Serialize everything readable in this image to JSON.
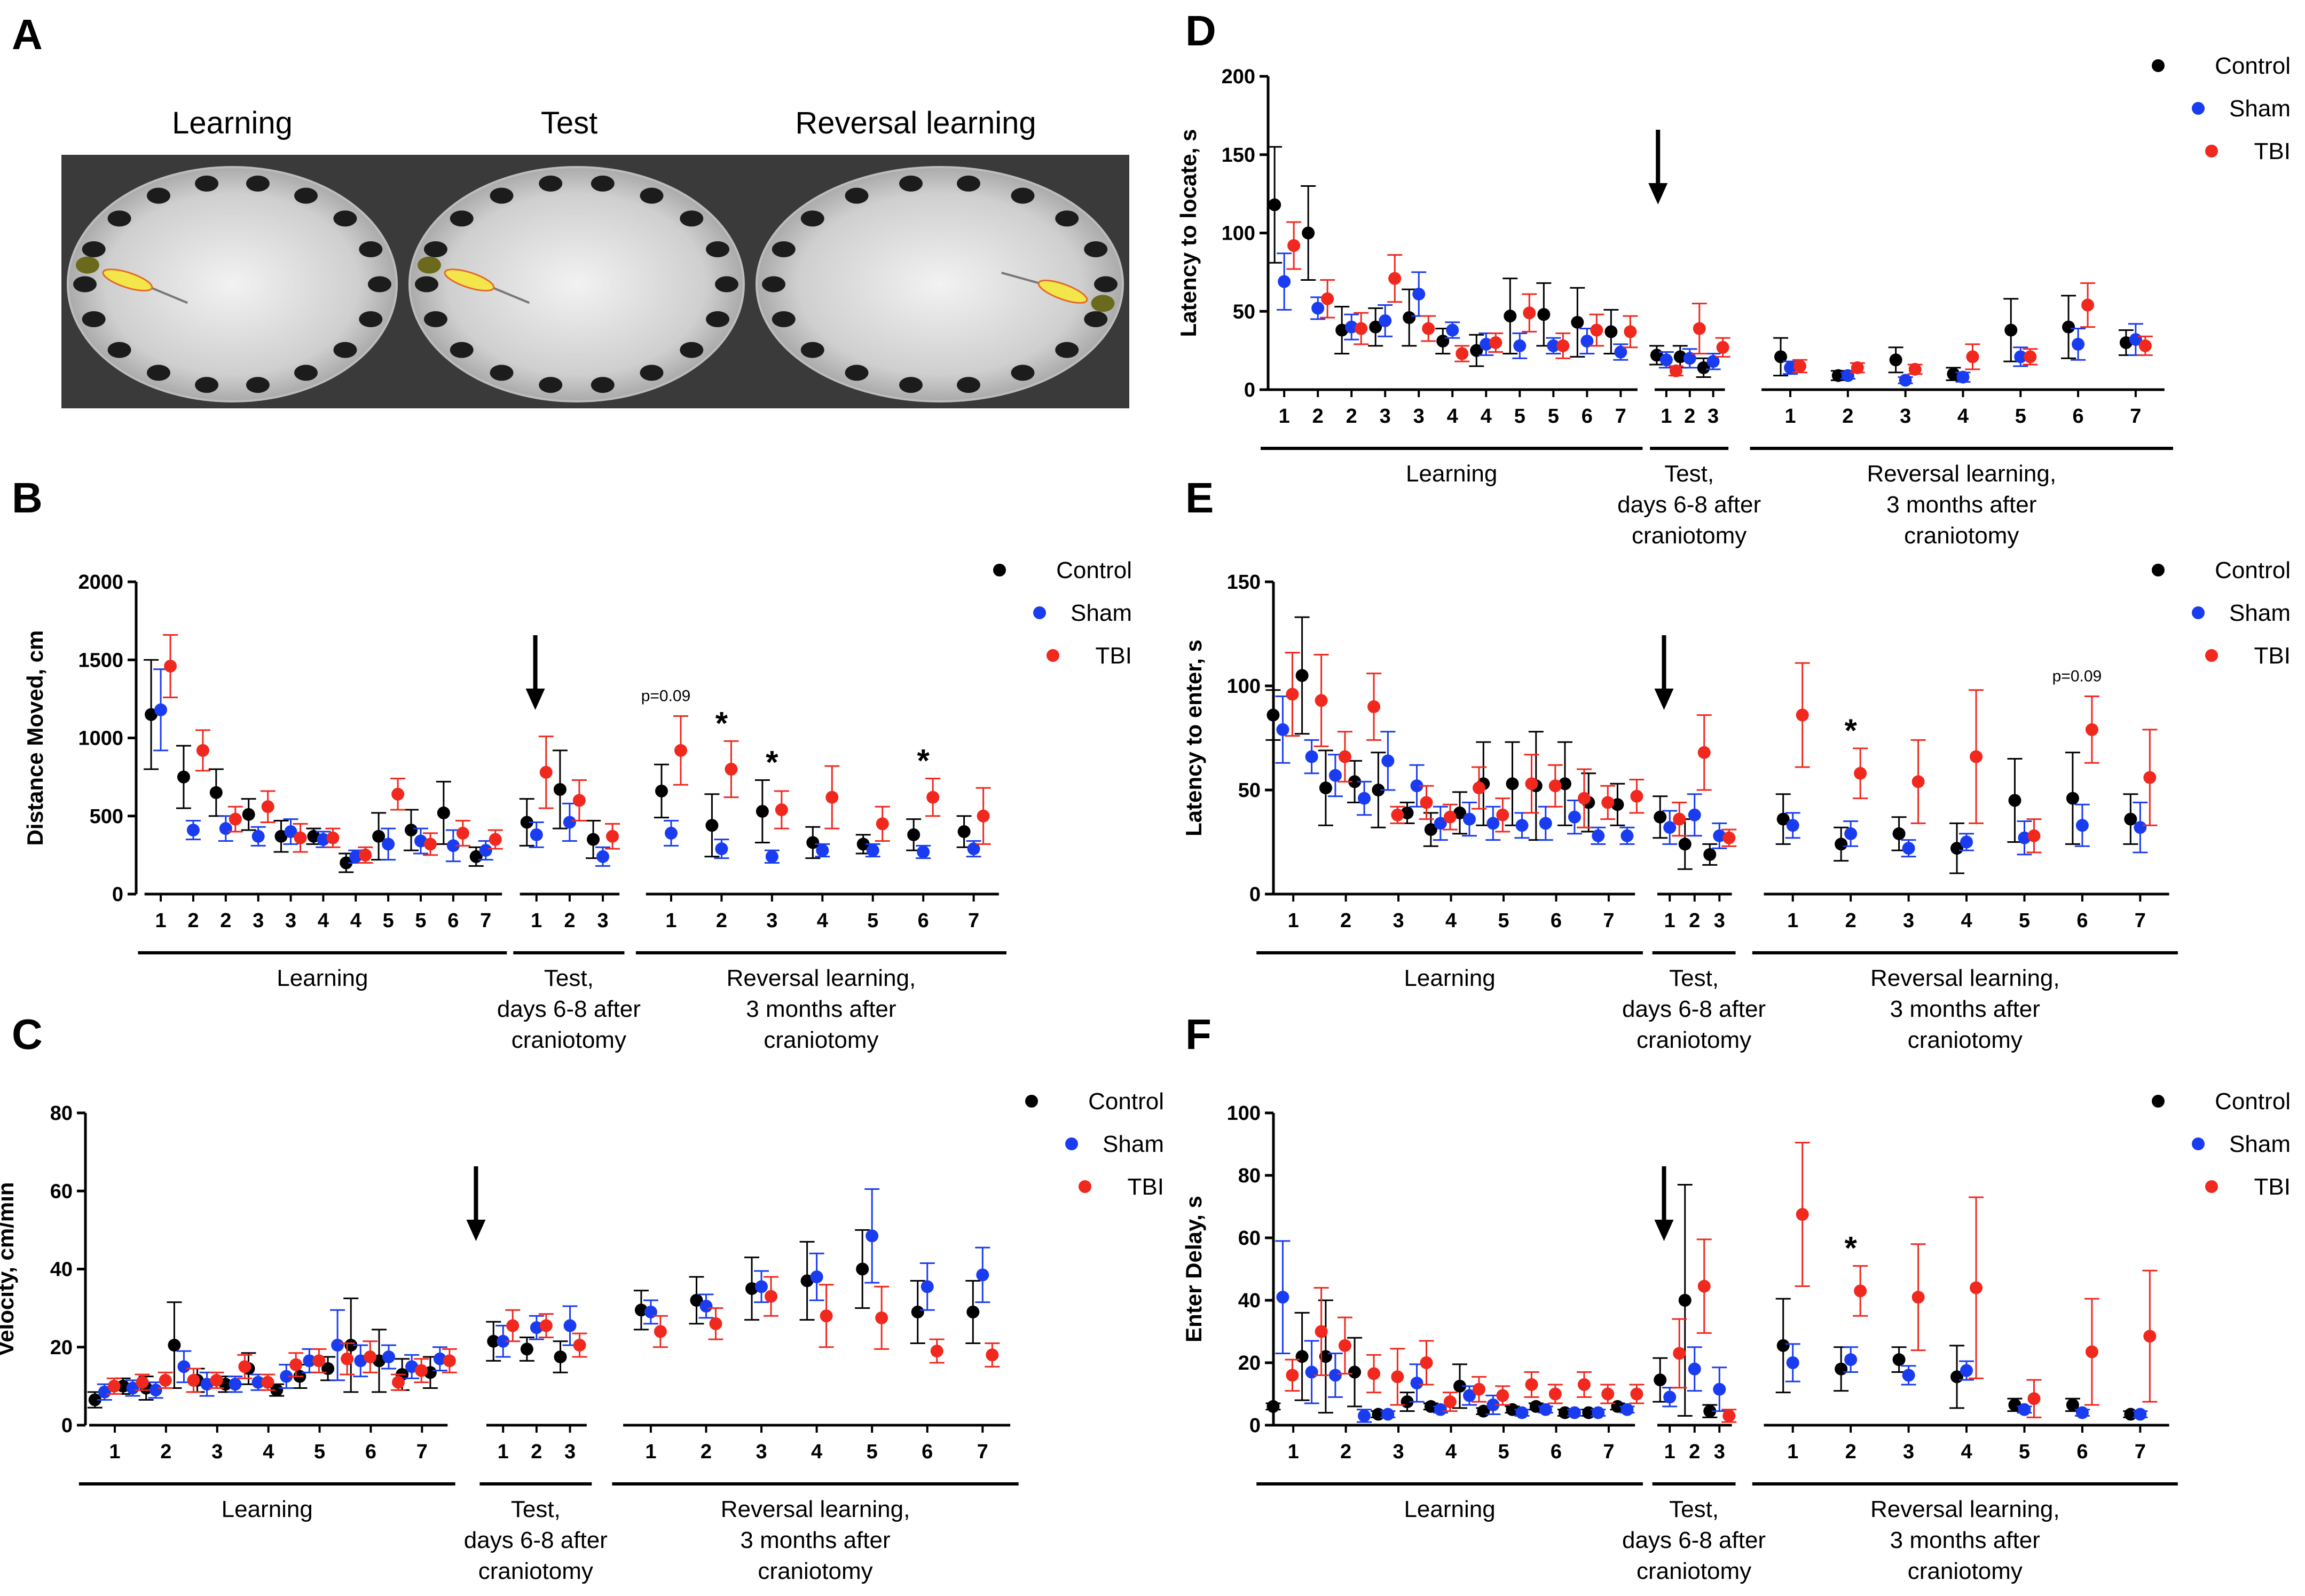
{
  "colors": {
    "Control": "#000000",
    "Sham": "#1a3cf0",
    "TBI": "#f0281e"
  },
  "photo_panel": {
    "letter": "A",
    "labels": [
      "Learning",
      "Test",
      "Reversal learning"
    ]
  },
  "chart_data": [
    {
      "panel": "B",
      "type": "scatter",
      "ylabel": "Distance Moved, cm",
      "ylim": [
        0,
        2000
      ],
      "yticks": [
        0,
        500,
        1000,
        1500,
        2000
      ],
      "legend": [
        "Control",
        "Sham",
        "TBI"
      ],
      "legend_position": "top-right",
      "groups": [
        {
          "label": "Learning",
          "ticks": [
            "1",
            "2",
            "2",
            "3",
            "3",
            "4",
            "4",
            "5",
            "5",
            "6",
            "7"
          ]
        },
        {
          "label": "Test,\ndays 6-8 after\ncraniotomy",
          "ticks": [
            "1",
            "2",
            "3"
          ]
        },
        {
          "label": "Reversal learning,\n3 months after\ncraniotomy",
          "ticks": [
            "1",
            "2",
            "3",
            "4",
            "5",
            "6",
            "7"
          ]
        }
      ],
      "series": [
        {
          "name": "Control",
          "values": [
            1150,
            750,
            650,
            510,
            370,
            370,
            200,
            370,
            410,
            520,
            240,
            460,
            670,
            350,
            660,
            440,
            530,
            330,
            320,
            380,
            400
          ],
          "errors": [
            350,
            200,
            150,
            100,
            100,
            50,
            60,
            150,
            130,
            200,
            60,
            150,
            250,
            120,
            170,
            200,
            200,
            100,
            60,
            100,
            100
          ]
        },
        {
          "name": "Sham",
          "values": [
            1180,
            410,
            420,
            370,
            400,
            350,
            240,
            320,
            340,
            310,
            280,
            380,
            460,
            240,
            390,
            290,
            240,
            280,
            280,
            270,
            290
          ],
          "errors": [
            260,
            60,
            80,
            60,
            80,
            50,
            40,
            100,
            80,
            100,
            60,
            80,
            120,
            60,
            80,
            60,
            40,
            40,
            40,
            40,
            50
          ]
        },
        {
          "name": "TBI",
          "values": [
            1460,
            920,
            480,
            560,
            360,
            360,
            250,
            640,
            320,
            390,
            350,
            780,
            600,
            370,
            920,
            800,
            540,
            620,
            450,
            620,
            500
          ],
          "errors": [
            200,
            130,
            80,
            100,
            90,
            60,
            50,
            100,
            70,
            80,
            60,
            230,
            130,
            80,
            220,
            180,
            120,
            200,
            110,
            120,
            180
          ]
        }
      ],
      "annotations": [
        {
          "text": "p=0.09",
          "group": 2,
          "index": 0
        },
        {
          "text": "*",
          "group": 2,
          "index": 1
        },
        {
          "text": "*",
          "group": 2,
          "index": 2
        },
        {
          "text": "*",
          "group": 2,
          "index": 5
        }
      ]
    },
    {
      "panel": "C",
      "type": "scatter",
      "ylabel": "Velocity, cm/min",
      "ylim": [
        0,
        80
      ],
      "yticks": [
        0,
        20,
        40,
        60,
        80
      ],
      "legend": [
        "Control",
        "Sham",
        "TBI"
      ],
      "legend_position": "top-right",
      "groups": [
        {
          "label": "Learning",
          "ticks": [
            "1",
            "2",
            "3",
            "4",
            "5",
            "6",
            "7"
          ],
          "pairs": true
        },
        {
          "label": "Test,\ndays 6-8 after\ncraniotomy",
          "ticks": [
            "1",
            "2",
            "3"
          ]
        },
        {
          "label": "Reversal learning,\n3 months after\ncraniotomy",
          "ticks": [
            "1",
            "2",
            "3",
            "4",
            "5",
            "6",
            "7"
          ]
        }
      ],
      "series": [
        {
          "name": "Control",
          "values": [
            6.5,
            10,
            9.5,
            20.5,
            11.5,
            10.5,
            14.5,
            9,
            12.5,
            14.5,
            20.5,
            16.5,
            13,
            13.5,
            21.5,
            19.5,
            17.5,
            29.5,
            32,
            35,
            37,
            40,
            29,
            29
          ],
          "errors": [
            2,
            2,
            3,
            11,
            3,
            2,
            4,
            1.5,
            3,
            3,
            12,
            8,
            4,
            4,
            5,
            3,
            4,
            5,
            6,
            8,
            10,
            10,
            8,
            8
          ]
        },
        {
          "name": "Sham",
          "values": [
            8.5,
            9.5,
            9,
            15,
            10.5,
            10.5,
            11,
            12.5,
            16.5,
            20.5,
            16.5,
            17.5,
            15,
            17,
            21.5,
            25,
            25.5,
            29,
            30.5,
            35.5,
            38,
            48.5,
            35.5,
            38.5
          ],
          "errors": [
            2,
            2,
            2,
            4,
            3,
            2,
            2,
            3,
            3,
            9,
            4,
            3,
            3,
            3,
            4,
            3,
            5,
            3,
            3,
            4,
            6,
            12,
            6,
            7
          ]
        },
        {
          "name": "TBI",
          "values": [
            10,
            11,
            11.5,
            11.5,
            11.5,
            15,
            11,
            15.5,
            16.5,
            17,
            17.5,
            11,
            14,
            16.5,
            25.5,
            25.5,
            20.5,
            24,
            26,
            33,
            28,
            27.5,
            19,
            18
          ],
          "errors": [
            2,
            2,
            2,
            3,
            2,
            3,
            2,
            3,
            3,
            4,
            4,
            2,
            3,
            3,
            4,
            3,
            3,
            4,
            4,
            5,
            8,
            8,
            3,
            3
          ]
        }
      ]
    },
    {
      "panel": "D",
      "type": "scatter",
      "ylabel": "Latency to locate, s",
      "ylim": [
        0,
        200
      ],
      "yticks": [
        0,
        50,
        100,
        150,
        200
      ],
      "legend": [
        "Control",
        "Sham",
        "TBI"
      ],
      "legend_position": "top-right",
      "groups": [
        {
          "label": "Learning",
          "ticks": [
            "1",
            "2",
            "2",
            "3",
            "3",
            "4",
            "4",
            "5",
            "5",
            "6",
            "7"
          ]
        },
        {
          "label": "Test,\ndays 6-8 after\ncraniotomy",
          "ticks": [
            "1",
            "2",
            "3"
          ]
        },
        {
          "label": "Reversal learning,\n3 months after\ncraniotomy",
          "ticks": [
            "1",
            "2",
            "3",
            "4",
            "5",
            "6",
            "7"
          ]
        }
      ],
      "series": [
        {
          "name": "Control",
          "values": [
            118,
            100,
            38,
            40,
            46,
            31,
            25,
            47,
            48,
            43,
            37,
            22,
            21,
            14,
            21,
            9,
            19,
            10,
            38,
            40,
            30
          ],
          "errors": [
            37,
            30,
            15,
            12,
            18,
            8,
            10,
            24,
            20,
            22,
            14,
            6,
            7,
            6,
            12,
            3,
            8,
            4,
            20,
            20,
            8
          ]
        },
        {
          "name": "Sham",
          "values": [
            69,
            52,
            40,
            44,
            61,
            38,
            29,
            28,
            28,
            31,
            24,
            19,
            20,
            18,
            14,
            9,
            6,
            8,
            21,
            29,
            32
          ],
          "errors": [
            18,
            7,
            8,
            10,
            14,
            5,
            7,
            8,
            5,
            8,
            5,
            5,
            6,
            5,
            4,
            2,
            2,
            3,
            6,
            10,
            10
          ]
        },
        {
          "name": "TBI",
          "values": [
            92,
            58,
            39,
            71,
            39,
            23,
            30,
            49,
            28,
            38,
            37,
            12,
            39,
            27,
            15,
            14,
            13,
            21,
            21,
            54,
            28
          ],
          "errors": [
            15,
            12,
            10,
            15,
            8,
            5,
            6,
            12,
            8,
            10,
            10,
            3,
            16,
            6,
            4,
            3,
            3,
            8,
            5,
            14,
            6
          ]
        }
      ]
    },
    {
      "panel": "E",
      "type": "scatter",
      "ylabel": "Latency to enter, s",
      "ylim": [
        0,
        150
      ],
      "yticks": [
        0,
        50,
        100,
        150
      ],
      "legend": [
        "Control",
        "Sham",
        "TBI"
      ],
      "legend_position": "top-right",
      "groups": [
        {
          "label": "Learning",
          "ticks": [
            "1",
            "2",
            "3",
            "4",
            "5",
            "6",
            "7"
          ],
          "pairs": true
        },
        {
          "label": "Test,\ndays 6-8 after\ncraniotomy",
          "ticks": [
            "1",
            "2",
            "3"
          ]
        },
        {
          "label": "Reversal learning,\n3 months after\ncraniotomy",
          "ticks": [
            "1",
            "2",
            "3",
            "4",
            "5",
            "6",
            "7"
          ]
        }
      ],
      "series": [
        {
          "name": "Control",
          "values": [
            86,
            105,
            51,
            54,
            50,
            39,
            31,
            39,
            53,
            53,
            52,
            53,
            44,
            43,
            37,
            24,
            19,
            36,
            24,
            29,
            22,
            45,
            46,
            36
          ],
          "errors": [
            12,
            28,
            18,
            10,
            18,
            5,
            8,
            10,
            20,
            20,
            26,
            20,
            14,
            10,
            10,
            12,
            5,
            12,
            8,
            8,
            12,
            20,
            22,
            12
          ]
        },
        {
          "name": "Sham",
          "values": [
            79,
            66,
            57,
            46,
            64,
            52,
            34,
            36,
            34,
            33,
            34,
            37,
            28,
            28,
            32,
            38,
            28,
            33,
            29,
            22,
            25,
            27,
            33,
            32
          ],
          "errors": [
            16,
            8,
            10,
            8,
            14,
            10,
            8,
            8,
            8,
            6,
            8,
            8,
            4,
            4,
            8,
            10,
            6,
            6,
            6,
            4,
            4,
            8,
            10,
            12
          ]
        },
        {
          "name": "TBI",
          "values": [
            96,
            93,
            66,
            90,
            38,
            44,
            37,
            51,
            38,
            53,
            52,
            46,
            44,
            47,
            36,
            68,
            27,
            86,
            58,
            54,
            66,
            28,
            79,
            56
          ],
          "errors": [
            20,
            22,
            12,
            16,
            4,
            8,
            6,
            10,
            8,
            14,
            10,
            14,
            8,
            8,
            8,
            18,
            4,
            25,
            12,
            20,
            32,
            8,
            16,
            23
          ]
        }
      ],
      "annotations": [
        {
          "text": "*",
          "group": 2,
          "index": 1
        },
        {
          "text": "p=0.09",
          "group": 2,
          "index": 5
        }
      ]
    },
    {
      "panel": "F",
      "type": "scatter",
      "ylabel": "Enter Delay, s",
      "ylim": [
        0,
        100
      ],
      "yticks": [
        0,
        20,
        40,
        60,
        80,
        100
      ],
      "legend": [
        "Control",
        "Sham",
        "TBI"
      ],
      "legend_position": "top-right",
      "groups": [
        {
          "label": "Learning",
          "ticks": [
            "1",
            "2",
            "3",
            "4",
            "5",
            "6",
            "7"
          ],
          "pairs": true
        },
        {
          "label": "Test,\ndays 6-8 after\ncraniotomy",
          "ticks": [
            "1",
            "2",
            "3"
          ]
        },
        {
          "label": "Reversal learning,\n3 months after\ncraniotomy",
          "ticks": [
            "1",
            "2",
            "3",
            "4",
            "5",
            "6",
            "7"
          ]
        }
      ],
      "series": [
        {
          "name": "Control",
          "values": [
            6,
            22,
            22,
            17,
            3.5,
            7.5,
            6,
            12.5,
            4.5,
            5,
            6,
            4,
            4,
            6,
            14.5,
            40,
            4.5,
            25.5,
            18,
            21,
            15.5,
            6.5,
            6.5,
            3.5
          ],
          "errors": [
            1,
            14,
            18,
            11,
            1,
            3,
            1,
            7,
            1,
            1,
            1,
            1,
            1,
            1,
            7,
            37,
            2,
            15,
            7,
            4,
            10,
            2,
            2,
            1
          ]
        },
        {
          "name": "Sham",
          "values": [
            41,
            17,
            16,
            3,
            3.5,
            13.5,
            5,
            9.5,
            6.5,
            4,
            5,
            4,
            4,
            5,
            9,
            18,
            11.5,
            20,
            21,
            16,
            17.5,
            5,
            4,
            3.5
          ],
          "errors": [
            18,
            10,
            7,
            2,
            1,
            6,
            1,
            3,
            3,
            1,
            1,
            1,
            1,
            1,
            3,
            7,
            7,
            6,
            4,
            3,
            3,
            1,
            1,
            1
          ]
        },
        {
          "name": "TBI",
          "values": [
            16,
            30,
            25.5,
            16.5,
            15.5,
            20,
            7.5,
            11.5,
            9.5,
            13,
            10,
            13,
            10,
            10,
            23,
            44.5,
            3,
            67.5,
            43,
            41,
            44,
            8.5,
            23.5,
            28.5
          ],
          "errors": [
            5,
            14,
            9,
            6,
            9,
            7,
            3,
            4,
            3,
            4,
            3,
            4,
            3,
            3,
            11,
            15,
            2,
            23,
            8,
            17,
            29,
            6,
            17,
            21
          ]
        }
      ],
      "annotations": [
        {
          "text": "*",
          "group": 2,
          "index": 1
        }
      ]
    }
  ]
}
